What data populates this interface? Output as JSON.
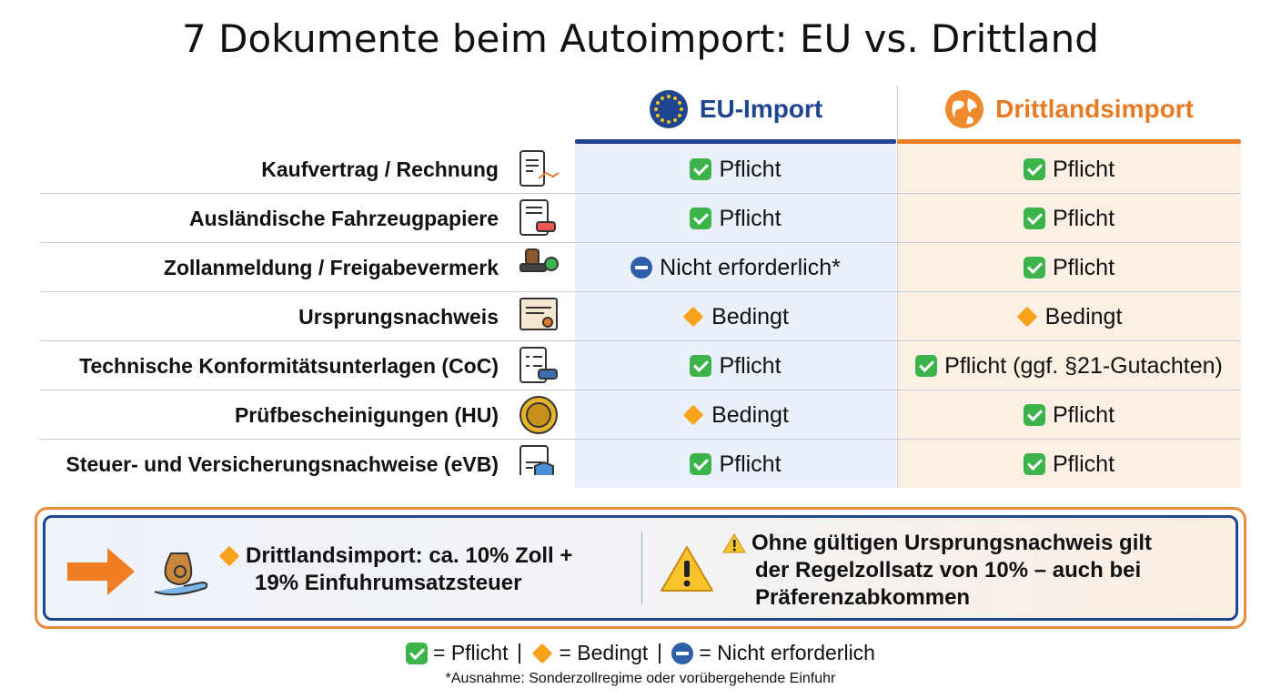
{
  "title": "7 Dokumente beim Autoimport: EU vs. Drittland",
  "columns": [
    "EU-Import",
    "Drittlandsimport"
  ],
  "rows": [
    {
      "document": "Kaufvertrag / Rechnung",
      "eu": "Pflicht",
      "third": "Pflicht"
    },
    {
      "document": "Ausländische Fahrzeugpapiere",
      "eu": "Pflicht",
      "third": "Pflicht"
    },
    {
      "document": "Zollanmeldung / Freigabevermerk",
      "eu": "Nicht erforderlich*",
      "third": "Pflicht"
    },
    {
      "document": "Ursprungsnachweis",
      "eu": "Bedingt",
      "third": "Bedingt"
    },
    {
      "document": "Technische Konformitätsunterlagen (CoC)",
      "eu": "Pflicht",
      "third": "Pflicht (ggf. §21-Gutachten)"
    },
    {
      "document": "Prüfbescheinigungen (HU)",
      "eu": "Bedingt",
      "third": "Pflicht"
    },
    {
      "document": "Steuer- und Versicherungsnachweise (eVB)",
      "eu": "Pflicht",
      "third": "Pflicht"
    }
  ],
  "notes": {
    "tax": [
      "Drittlandsimport: ca. 10% Zoll +",
      "19% Einfuhrumsatzsteuer"
    ],
    "warning": [
      "Ohne gültigen Ursprungsnachweis gilt",
      "der Regelzollsatz von 10% – auch bei",
      "Präferenzabkommen"
    ]
  },
  "legend": [
    "= Pflicht",
    "= Bedingt",
    "= Nicht erforderlich"
  ],
  "footnote": "*Ausnahme: Sonderzollregime oder vorübergehende Einfuhr"
}
